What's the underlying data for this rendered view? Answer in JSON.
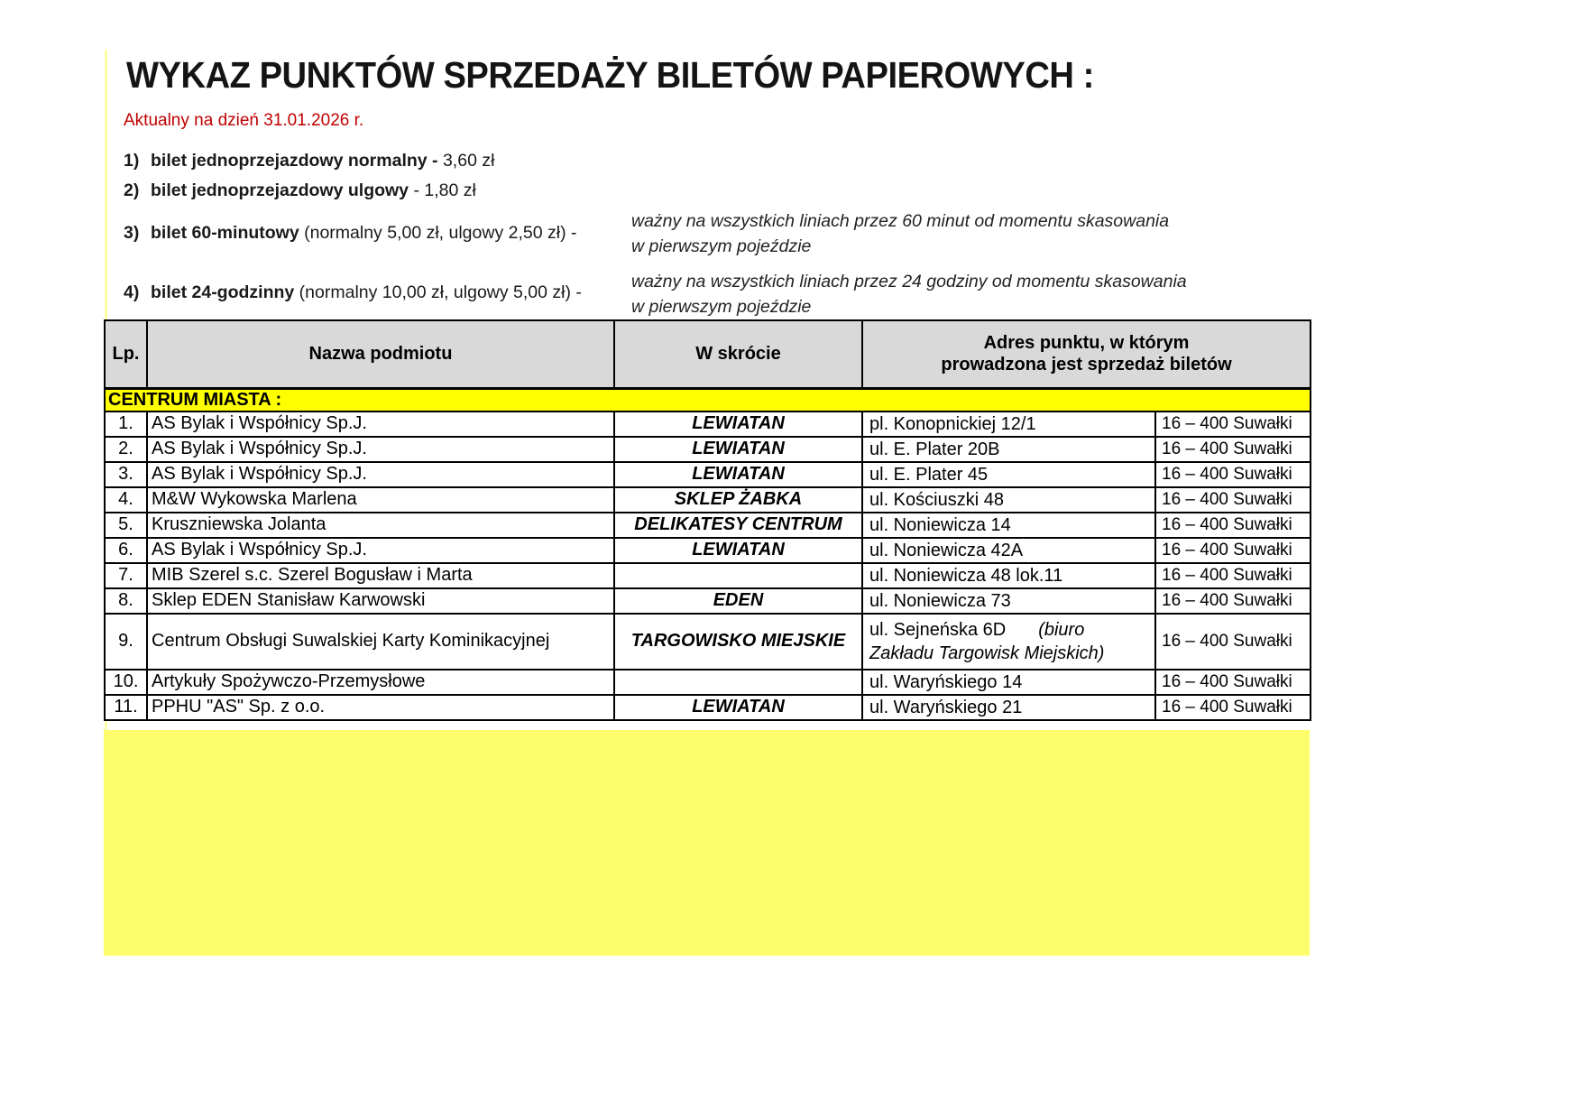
{
  "document": {
    "title": "WYKAZ PUNKTÓW SPRZEDAŻY BILETÓW PAPIEROWYCH :",
    "date_note": "Aktualny na dzień 31.01.2026 r."
  },
  "tickets": [
    {
      "num": "1)",
      "label": "bilet jednoprzejazdowy normalny -",
      "rest": " 3,60 zł",
      "note": []
    },
    {
      "num": "2)",
      "label": "bilet jednoprzejazdowy ulgowy",
      "rest": " - 1,80 zł",
      "note": []
    },
    {
      "num": "3)",
      "label": "bilet 60-minutowy",
      "rest": " (normalny 5,00 zł, ulgowy 2,50 zł) -",
      "note": [
        "ważny na wszystkich liniach przez 60 minut od momentu skasowania",
        "w pierwszym pojeździe"
      ]
    },
    {
      "num": "4)",
      "label": "bilet 24-godzinny",
      "rest": " (normalny 10,00 zł, ulgowy 5,00 zł) -",
      "note": [
        "ważny na wszystkich liniach przez 24 godziny od momentu skasowania",
        "w pierwszym pojeździe"
      ]
    }
  ],
  "table": {
    "headers": {
      "lp": "Lp.",
      "name": "Nazwa podmiotu",
      "short": "W skrócie",
      "address_line1": "Adres punktu, w którym",
      "address_line2": "prowadzona jest sprzedaż biletów"
    },
    "section_label": "CENTRUM MIASTA :",
    "rows": [
      {
        "lp": "1.",
        "name": "AS Bylak i Współnicy Sp.J.",
        "short": "LEWIATAN",
        "addr": "pl. Konopnickiej 12/1",
        "city": "16 – 400 Suwałki"
      },
      {
        "lp": "2.",
        "name": "AS Bylak i Współnicy Sp.J.",
        "short": "LEWIATAN",
        "addr": "ul. E. Plater 20B",
        "city": "16 – 400 Suwałki"
      },
      {
        "lp": "3.",
        "name": "AS Bylak i Współnicy Sp.J.",
        "short": "LEWIATAN",
        "addr": "ul. E. Plater 45",
        "city": "16 – 400 Suwałki"
      },
      {
        "lp": "4.",
        "name": "M&W Wykowska Marlena",
        "short": "SKLEP ŻABKA",
        "addr": "ul. Kościuszki 48",
        "city": "16 – 400 Suwałki"
      },
      {
        "lp": "5.",
        "name": "Kruszniewska Jolanta",
        "short": "DELIKATESY CENTRUM",
        "addr": "ul. Noniewicza 14",
        "city": "16 – 400 Suwałki"
      },
      {
        "lp": "6.",
        "name": "AS Bylak i Współnicy Sp.J.",
        "short": "LEWIATAN",
        "addr": "ul. Noniewicza 42A",
        "city": "16 – 400 Suwałki"
      },
      {
        "lp": "7.",
        "name": "MIB Szerel s.c. Szerel Bogusław i Marta",
        "short": "",
        "addr": "ul. Noniewicza 48 lok.11",
        "city": "16 – 400 Suwałki"
      },
      {
        "lp": "8.",
        "name": "Sklep EDEN Stanisław Karwowski",
        "short": "EDEN",
        "addr": "ul. Noniewicza 73",
        "city": "16 – 400 Suwałki"
      },
      {
        "lp": "9.",
        "name": "Centrum Obsługi Suwalskiej Karty Kominikacyjnej",
        "short": "TARGOWISKO MIEJSKIE",
        "addr": "ul. Sejneńska 6D",
        "addr_note1": "(biuro",
        "addr_note2": "Zakładu Targowisk Miejskich)",
        "city": "16 – 400 Suwałki",
        "tall": true
      },
      {
        "lp": "10.",
        "name": "Artykuły Spożywczo-Przemysłowe",
        "short": "",
        "addr": "ul. Waryńskiego 14",
        "city": "16 – 400 Suwałki"
      },
      {
        "lp": "11.",
        "name": "PPHU \"AS\" Sp. z o.o.",
        "short": "LEWIATAN",
        "addr": "ul. Waryńskiego 21",
        "city": "16 – 400 Suwałki"
      }
    ]
  },
  "colors": {
    "date_red": "#c00000",
    "header_gray": "#d9d9d9",
    "section_yellow": "#ffff00",
    "footer_yellow": "#fdfd6b",
    "margin_rule_yellow": "#ffffa6"
  }
}
